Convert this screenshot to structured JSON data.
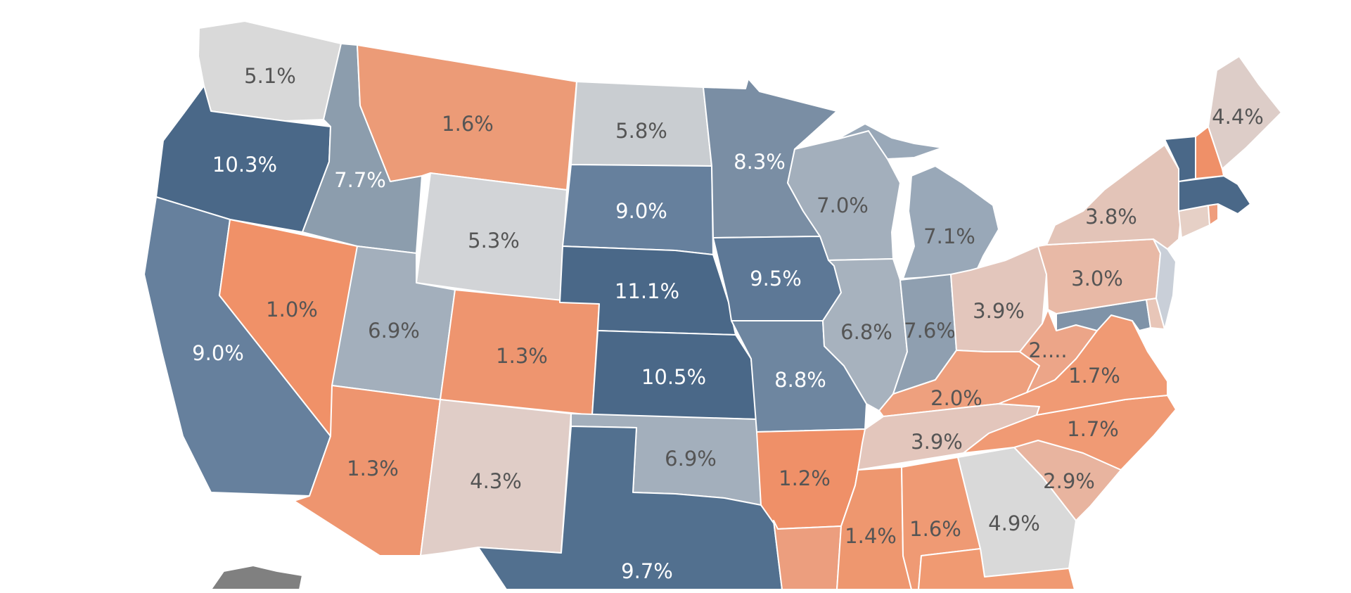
{
  "map": {
    "states": [
      {
        "id": "WA",
        "label": "5.1%",
        "color": "#d9d9d9",
        "text_color": "#555555"
      },
      {
        "id": "OR",
        "label": "10.3%",
        "color": "#4a6888",
        "text_color": "#ffffff"
      },
      {
        "id": "CA",
        "label": "9.0%",
        "color": "#66809d",
        "text_color": "#ffffff"
      },
      {
        "id": "ID",
        "label": "7.7%",
        "color": "#8c9dad",
        "text_color": "#ffffff"
      },
      {
        "id": "NV",
        "label": "1.0%",
        "color": "#f09168",
        "text_color": "#555555"
      },
      {
        "id": "MT",
        "label": "1.6%",
        "color": "#ec9b77",
        "text_color": "#555555"
      },
      {
        "id": "WY",
        "label": "5.3%",
        "color": "#d2d4d7",
        "text_color": "#555555"
      },
      {
        "id": "UT",
        "label": "6.9%",
        "color": "#a3afbc",
        "text_color": "#555555"
      },
      {
        "id": "AZ",
        "label": "1.3%",
        "color": "#ee956f",
        "text_color": "#555555"
      },
      {
        "id": "CO",
        "label": "1.3%",
        "color": "#ee956f",
        "text_color": "#555555"
      },
      {
        "id": "NM",
        "label": "4.3%",
        "color": "#e0cdc7",
        "text_color": "#555555"
      },
      {
        "id": "ND",
        "label": "5.8%",
        "color": "#c9cdd1",
        "text_color": "#555555"
      },
      {
        "id": "SD",
        "label": "9.0%",
        "color": "#66809d",
        "text_color": "#ffffff"
      },
      {
        "id": "NE",
        "label": "11.1%",
        "color": "#4a6888",
        "text_color": "#ffffff"
      },
      {
        "id": "KS",
        "label": "10.5%",
        "color": "#4a6888",
        "text_color": "#ffffff"
      },
      {
        "id": "OK",
        "label": "6.9%",
        "color": "#a3afbc",
        "text_color": "#555555"
      },
      {
        "id": "TX",
        "label": "9.7%",
        "color": "#52708f",
        "text_color": "#ffffff"
      },
      {
        "id": "MN",
        "label": "8.3%",
        "color": "#7a8ea4",
        "text_color": "#ffffff"
      },
      {
        "id": "IA",
        "label": "9.5%",
        "color": "#5d7896",
        "text_color": "#ffffff"
      },
      {
        "id": "MO",
        "label": "8.8%",
        "color": "#6e86a0",
        "text_color": "#ffffff"
      },
      {
        "id": "AR",
        "label": "1.2%",
        "color": "#ef9068",
        "text_color": "#555555"
      },
      {
        "id": "LA",
        "label": "",
        "color": "#ec9e7e",
        "text_color": "#555555"
      },
      {
        "id": "WI",
        "label": "7.0%",
        "color": "#a3afbc",
        "text_color": "#555555"
      },
      {
        "id": "MI",
        "label": "7.1%",
        "color": "#99a8b8",
        "text_color": "#555555"
      },
      {
        "id": "IL",
        "label": "6.8%",
        "color": "#a7b2be",
        "text_color": "#555555"
      },
      {
        "id": "IN",
        "label": "7.6%",
        "color": "#8f9fb0",
        "text_color": "#555555"
      },
      {
        "id": "OH",
        "label": "3.9%",
        "color": "#e3c6bc",
        "text_color": "#555555"
      },
      {
        "id": "KY",
        "label": "2.0%",
        "color": "#eea07e",
        "text_color": "#555555"
      },
      {
        "id": "TN",
        "label": "3.9%",
        "color": "#e3c6bc",
        "text_color": "#555555"
      },
      {
        "id": "MS",
        "label": "1.4%",
        "color": "#ee976f",
        "text_color": "#555555"
      },
      {
        "id": "AL",
        "label": "1.6%",
        "color": "#ef9a74",
        "text_color": "#555555"
      },
      {
        "id": "GA",
        "label": "4.9%",
        "color": "#d9d9d9",
        "text_color": "#555555"
      },
      {
        "id": "FL",
        "label": "",
        "color": "#f09a72",
        "text_color": "#555555"
      },
      {
        "id": "SC",
        "label": "2.9%",
        "color": "#e8b49f",
        "text_color": "#555555"
      },
      {
        "id": "NC",
        "label": "1.7%",
        "color": "#f09a74",
        "text_color": "#555555"
      },
      {
        "id": "VA",
        "label": "1.7%",
        "color": "#f09a74",
        "text_color": "#555555"
      },
      {
        "id": "WV",
        "label": "2....",
        "color": "#eca588",
        "text_color": "#555555"
      },
      {
        "id": "PA",
        "label": "3.0%",
        "color": "#e8b9a6",
        "text_color": "#555555"
      },
      {
        "id": "NY",
        "label": "3.8%",
        "color": "#e3c4b8",
        "text_color": "#555555"
      },
      {
        "id": "VT",
        "label": "",
        "color": "#4a6888",
        "text_color": "#ffffff"
      },
      {
        "id": "NH",
        "label": "",
        "color": "#ef9068",
        "text_color": "#555555"
      },
      {
        "id": "ME",
        "label": "4.4%",
        "color": "#ddcdc8",
        "text_color": "#555555"
      },
      {
        "id": "MA",
        "label": "",
        "color": "#4a6888",
        "text_color": "#ffffff"
      },
      {
        "id": "CT",
        "label": "",
        "color": "#e6d0c6",
        "text_color": "#555555"
      },
      {
        "id": "RI",
        "label": "",
        "color": "#ef9d7c",
        "text_color": "#555555"
      },
      {
        "id": "NJ",
        "label": "",
        "color": "#c9cfd8",
        "text_color": "#555555"
      },
      {
        "id": "DE",
        "label": "",
        "color": "#e8c6b8",
        "text_color": "#555555"
      },
      {
        "id": "MD",
        "label": "",
        "color": "#7f93a8",
        "text_color": "#555555"
      },
      {
        "id": "AK",
        "label": "",
        "color": "#808080",
        "text_color": "#555555"
      }
    ]
  }
}
